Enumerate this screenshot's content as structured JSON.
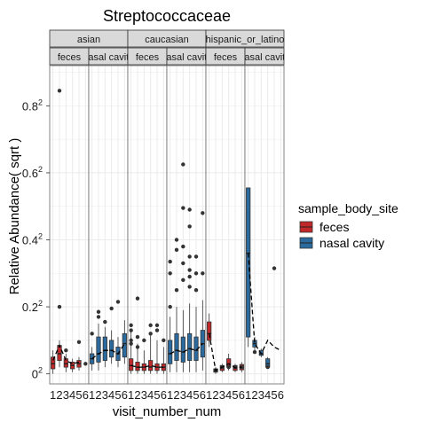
{
  "chart_data": {
    "type": "boxplot",
    "title": "Streptococcaceae",
    "xlabel": "visit_number_num",
    "ylabel": "Relative Abundance( sqrt )",
    "y_ticks": [
      {
        "value": 0.0,
        "base": "0",
        "sup": "2"
      },
      {
        "value": 0.2,
        "base": "0.2",
        "sup": "2"
      },
      {
        "value": 0.4,
        "base": "0.4",
        "sup": "2"
      },
      {
        "value": 0.6,
        "base": "0.6",
        "sup": "2"
      },
      {
        "value": 0.8,
        "base": "0.8",
        "sup": "2"
      }
    ],
    "ylim": [
      -0.03,
      0.92
    ],
    "x_categories": [
      "1",
      "2",
      "3",
      "4",
      "5",
      "6"
    ],
    "grid": true,
    "legend": {
      "title": "sample_body_site",
      "position": "right",
      "entries": [
        {
          "label": "feces",
          "color": "#c0282a"
        },
        {
          "label": "nasal cavity",
          "color": "#2a6a9e"
        }
      ]
    },
    "facet_rows_top": [
      "asian",
      "caucasian",
      "hispanic_or_latino"
    ],
    "facet_rows_bottom": [
      "feces",
      "nasal cavity"
    ],
    "panels": [
      {
        "ethnicity": "asian",
        "site": "feces",
        "boxes": [
          {
            "x": 1,
            "q1": 0.015,
            "med": 0.03,
            "q3": 0.05,
            "lo": 0.0,
            "hi": 0.07
          },
          {
            "x": 2,
            "q1": 0.04,
            "med": 0.06,
            "q3": 0.085,
            "lo": 0.02,
            "hi": 0.1
          },
          {
            "x": 3,
            "q1": 0.02,
            "med": 0.03,
            "q3": 0.045,
            "lo": 0.005,
            "hi": 0.06
          },
          {
            "x": 4,
            "q1": 0.015,
            "med": 0.025,
            "q3": 0.035,
            "lo": 0.005,
            "hi": 0.045
          },
          {
            "x": 5,
            "q1": 0.02,
            "med": 0.03,
            "q3": 0.04,
            "lo": 0.01,
            "hi": 0.05
          }
        ],
        "outliers": [
          {
            "x": 2,
            "y": 0.845
          },
          {
            "x": 2,
            "y": 0.2
          },
          {
            "x": 3,
            "y": 0.07
          },
          {
            "x": 5,
            "y": 0.095
          },
          {
            "x": 6,
            "y": 0.03
          }
        ],
        "trend": [
          {
            "x": 1,
            "y": 0.04
          },
          {
            "x": 2,
            "y": 0.085
          },
          {
            "x": 3,
            "y": 0.04
          },
          {
            "x": 4,
            "y": 0.03
          },
          {
            "x": 5,
            "y": 0.035
          }
        ]
      },
      {
        "ethnicity": "asian",
        "site": "nasal cavity",
        "boxes": [
          {
            "x": 1,
            "q1": 0.03,
            "med": 0.045,
            "q3": 0.06,
            "lo": 0.01,
            "hi": 0.08
          },
          {
            "x": 2,
            "q1": 0.035,
            "med": 0.06,
            "q3": 0.11,
            "lo": 0.01,
            "hi": 0.15
          },
          {
            "x": 3,
            "q1": 0.04,
            "med": 0.07,
            "q3": 0.11,
            "lo": 0.02,
            "hi": 0.14
          },
          {
            "x": 4,
            "q1": 0.05,
            "med": 0.07,
            "q3": 0.1,
            "lo": 0.03,
            "hi": 0.13
          },
          {
            "x": 5,
            "q1": 0.04,
            "med": 0.06,
            "q3": 0.08,
            "lo": 0.02,
            "hi": 0.11
          },
          {
            "x": 6,
            "q1": 0.05,
            "med": 0.09,
            "q3": 0.12,
            "lo": 0.03,
            "hi": 0.16
          }
        ],
        "outliers": [
          {
            "x": 1,
            "y": 0.12
          },
          {
            "x": 2,
            "y": 0.185
          },
          {
            "x": 2,
            "y": 0.17
          },
          {
            "x": 3,
            "y": 0.155
          },
          {
            "x": 4,
            "y": 0.195
          },
          {
            "x": 5,
            "y": 0.215
          }
        ],
        "trend": [
          {
            "x": 1,
            "y": 0.045
          },
          {
            "x": 2,
            "y": 0.06
          },
          {
            "x": 3,
            "y": 0.07
          },
          {
            "x": 4,
            "y": 0.07
          },
          {
            "x": 5,
            "y": 0.06
          },
          {
            "x": 6,
            "y": 0.09
          }
        ]
      },
      {
        "ethnicity": "caucasian",
        "site": "feces",
        "boxes": [
          {
            "x": 1,
            "q1": 0.01,
            "med": 0.025,
            "q3": 0.045,
            "lo": 0.0,
            "hi": 0.13
          },
          {
            "x": 2,
            "q1": 0.01,
            "med": 0.02,
            "q3": 0.035,
            "lo": 0.0,
            "hi": 0.09
          },
          {
            "x": 3,
            "q1": 0.01,
            "med": 0.02,
            "q3": 0.03,
            "lo": 0.0,
            "hi": 0.07
          },
          {
            "x": 4,
            "q1": 0.01,
            "med": 0.02,
            "q3": 0.04,
            "lo": 0.0,
            "hi": 0.12
          },
          {
            "x": 5,
            "q1": 0.01,
            "med": 0.02,
            "q3": 0.03,
            "lo": 0.0,
            "hi": 0.1
          },
          {
            "x": 6,
            "q1": 0.01,
            "med": 0.02,
            "q3": 0.03,
            "lo": 0.0,
            "hi": 0.08
          }
        ],
        "outliers": [
          {
            "x": 1,
            "y": 0.145
          },
          {
            "x": 1,
            "y": 0.13
          },
          {
            "x": 1,
            "y": 0.1
          },
          {
            "x": 1,
            "y": 0.09
          },
          {
            "x": 2,
            "y": 0.225
          },
          {
            "x": 2,
            "y": 0.11
          },
          {
            "x": 2,
            "y": 0.08
          },
          {
            "x": 3,
            "y": 0.1
          },
          {
            "x": 4,
            "y": 0.145
          },
          {
            "x": 4,
            "y": 0.12
          },
          {
            "x": 5,
            "y": 0.145
          },
          {
            "x": 5,
            "y": 0.13
          },
          {
            "x": 6,
            "y": 0.1
          }
        ],
        "trend": [
          {
            "x": 1,
            "y": 0.025
          },
          {
            "x": 2,
            "y": 0.02
          },
          {
            "x": 3,
            "y": 0.02
          },
          {
            "x": 4,
            "y": 0.025
          },
          {
            "x": 5,
            "y": 0.02
          },
          {
            "x": 6,
            "y": 0.02
          }
        ]
      },
      {
        "ethnicity": "caucasian",
        "site": "nasal cavity",
        "boxes": [
          {
            "x": 1,
            "q1": 0.03,
            "med": 0.06,
            "q3": 0.1,
            "lo": 0.005,
            "hi": 0.17
          },
          {
            "x": 2,
            "q1": 0.04,
            "med": 0.07,
            "q3": 0.12,
            "lo": 0.005,
            "hi": 0.2
          },
          {
            "x": 3,
            "q1": 0.035,
            "med": 0.065,
            "q3": 0.11,
            "lo": 0.005,
            "hi": 0.19
          },
          {
            "x": 4,
            "q1": 0.04,
            "med": 0.075,
            "q3": 0.12,
            "lo": 0.005,
            "hi": 0.21
          },
          {
            "x": 5,
            "q1": 0.04,
            "med": 0.07,
            "q3": 0.11,
            "lo": 0.005,
            "hi": 0.2
          },
          {
            "x": 6,
            "q1": 0.05,
            "med": 0.09,
            "q3": 0.13,
            "lo": 0.01,
            "hi": 0.22
          }
        ],
        "outliers": [
          {
            "x": 1,
            "y": 0.335
          },
          {
            "x": 1,
            "y": 0.3
          },
          {
            "x": 1,
            "y": 0.2
          },
          {
            "x": 2,
            "y": 0.4
          },
          {
            "x": 2,
            "y": 0.37
          },
          {
            "x": 2,
            "y": 0.25
          },
          {
            "x": 3,
            "y": 0.625
          },
          {
            "x": 3,
            "y": 0.495
          },
          {
            "x": 3,
            "y": 0.38
          },
          {
            "x": 3,
            "y": 0.33
          },
          {
            "x": 3,
            "y": 0.28
          },
          {
            "x": 4,
            "y": 0.49
          },
          {
            "x": 4,
            "y": 0.44
          },
          {
            "x": 4,
            "y": 0.35
          },
          {
            "x": 4,
            "y": 0.31
          },
          {
            "x": 4,
            "y": 0.29
          },
          {
            "x": 4,
            "y": 0.26
          },
          {
            "x": 5,
            "y": 0.35
          },
          {
            "x": 5,
            "y": 0.3
          },
          {
            "x": 5,
            "y": 0.25
          },
          {
            "x": 6,
            "y": 0.48
          },
          {
            "x": 6,
            "y": 0.3
          }
        ],
        "trend": [
          {
            "x": 1,
            "y": 0.06
          },
          {
            "x": 2,
            "y": 0.07
          },
          {
            "x": 3,
            "y": 0.065
          },
          {
            "x": 4,
            "y": 0.075
          },
          {
            "x": 5,
            "y": 0.07
          },
          {
            "x": 6,
            "y": 0.09
          }
        ]
      },
      {
        "ethnicity": "hispanic_or_latino",
        "site": "feces",
        "boxes": [
          {
            "x": 1,
            "q1": 0.1,
            "med": 0.12,
            "q3": 0.155,
            "lo": 0.08,
            "hi": 0.18
          },
          {
            "x": 2,
            "q1": 0.005,
            "med": 0.01,
            "q3": 0.015,
            "lo": 0.0,
            "hi": 0.02
          },
          {
            "x": 3,
            "q1": 0.01,
            "med": 0.02,
            "q3": 0.025,
            "lo": 0.005,
            "hi": 0.03
          },
          {
            "x": 4,
            "q1": 0.02,
            "med": 0.03,
            "q3": 0.045,
            "lo": 0.01,
            "hi": 0.06
          },
          {
            "x": 5,
            "q1": 0.01,
            "med": 0.018,
            "q3": 0.025,
            "lo": 0.005,
            "hi": 0.03
          },
          {
            "x": 6,
            "q1": 0.012,
            "med": 0.02,
            "q3": 0.028,
            "lo": 0.005,
            "hi": 0.035
          }
        ],
        "outliers": [
          {
            "x": 2,
            "y": 0.01
          },
          {
            "x": 3,
            "y": 0.02
          },
          {
            "x": 4,
            "y": 0.02
          },
          {
            "x": 5,
            "y": 0.02
          },
          {
            "x": 6,
            "y": 0.02
          }
        ],
        "trend": [
          {
            "x": 1,
            "y": 0.12
          },
          {
            "x": 2,
            "y": 0.01
          },
          {
            "x": 3,
            "y": 0.02
          },
          {
            "x": 4,
            "y": 0.03
          },
          {
            "x": 5,
            "y": 0.018
          },
          {
            "x": 6,
            "y": 0.02
          }
        ]
      },
      {
        "ethnicity": "hispanic_or_latino",
        "site": "nasal cavity",
        "boxes": [
          {
            "x": 1,
            "q1": 0.11,
            "med": 0.36,
            "q3": 0.555,
            "lo": 0.08,
            "hi": 0.555
          },
          {
            "x": 2,
            "q1": 0.08,
            "med": 0.09,
            "q3": 0.1,
            "lo": 0.07,
            "hi": 0.11
          },
          {
            "x": 3,
            "q1": 0.055,
            "med": 0.06,
            "q3": 0.07,
            "lo": 0.05,
            "hi": 0.075
          },
          {
            "x": 4,
            "q1": 0.02,
            "med": 0.03,
            "q3": 0.045,
            "lo": 0.02,
            "hi": 0.05
          }
        ],
        "outliers": [
          {
            "x": 2,
            "y": 0.065
          },
          {
            "x": 4,
            "y": 0.02
          },
          {
            "x": 5,
            "y": 0.315
          }
        ],
        "trend": [
          {
            "x": 1,
            "y": 0.36
          },
          {
            "x": 2,
            "y": 0.09
          },
          {
            "x": 3,
            "y": 0.06
          },
          {
            "x": 4,
            "y": 0.1
          },
          {
            "x": 5,
            "y": 0.08
          },
          {
            "x": 6,
            "y": 0.07
          }
        ]
      }
    ]
  }
}
